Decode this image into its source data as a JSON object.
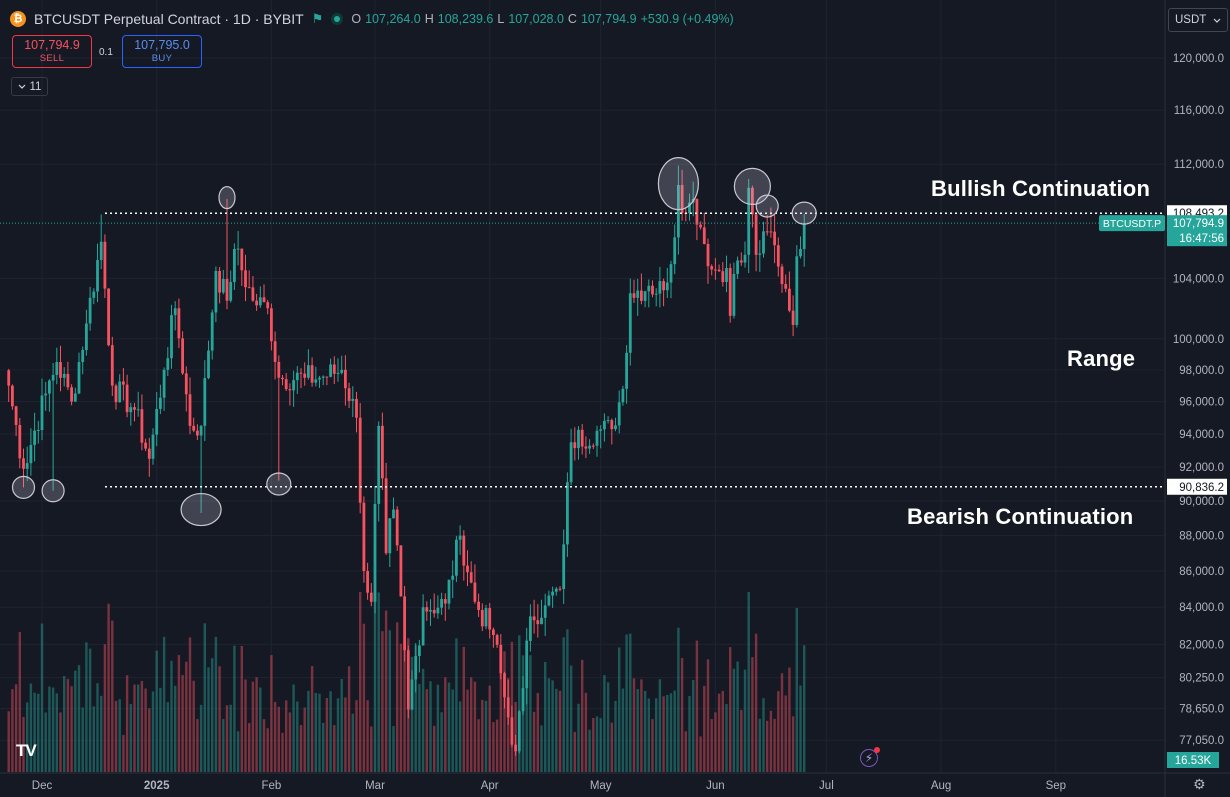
{
  "header": {
    "symbol_icon": "bitcoin-icon",
    "title": "BTCUSDT Perpetual Contract · 1D · BYBIT",
    "flag_icon": "flag-icon",
    "o_label": "O",
    "o_value": "107,264.0",
    "h_label": "H",
    "h_value": "108,239.6",
    "l_label": "L",
    "l_value": "107,028.0",
    "c_label": "C",
    "c_value": "107,794.9",
    "change": "+530.9 (+0.49%)"
  },
  "trade": {
    "sell_price": "107,794.9",
    "sell_label": "SELL",
    "spread": "0.1",
    "buy_price": "107,795.0",
    "buy_label": "BUY"
  },
  "indicators_toggle": {
    "icon": "chevron-down-icon",
    "count": "11"
  },
  "currency": {
    "label": "USDT",
    "icon": "chevron-down-icon"
  },
  "annotations": {
    "bullish": "Bullish Continuation",
    "range": "Range",
    "bearish": "Bearish Continuation"
  },
  "footer": {
    "logo": "TV",
    "bolt_icon": "lightning-icon",
    "settings_icon": "gear-icon"
  },
  "colors": {
    "up": "#26a69a",
    "down": "#f7525f",
    "background": "#151924",
    "grid": "#1f2330"
  },
  "chart_data": {
    "type": "candlestick",
    "symbol": "BTCUSDT.P",
    "scale": "log",
    "ylim": [
      75500,
      123000
    ],
    "y_ticks": [
      "120,000.0",
      "116,000.0",
      "112,000.0",
      "104,000.0",
      "100,000.0",
      "98,000.0",
      "96,000.0",
      "94,000.0",
      "92,000.0",
      "90,000.0",
      "88,000.0",
      "86,000.0",
      "84,000.0",
      "82,000.0",
      "80,250.0",
      "78,650.0",
      "77,050.0"
    ],
    "x_ticks": [
      {
        "label": "Dec",
        "date": "2024-12-01",
        "bold": false
      },
      {
        "label": "2025",
        "date": "2025-01-01",
        "bold": true
      },
      {
        "label": "Feb",
        "date": "2025-02-01",
        "bold": false
      },
      {
        "label": "Mar",
        "date": "2025-03-01",
        "bold": false
      },
      {
        "label": "Apr",
        "date": "2025-04-01",
        "bold": false
      },
      {
        "label": "May",
        "date": "2025-05-01",
        "bold": false
      },
      {
        "label": "Jun",
        "date": "2025-06-01",
        "bold": false
      },
      {
        "label": "Jul",
        "date": "2025-07-01",
        "bold": false
      },
      {
        "label": "Aug",
        "date": "2025-08-01",
        "bold": false
      },
      {
        "label": "Sep",
        "date": "2025-09-01",
        "bold": false
      }
    ],
    "last_date": "2025-06-25",
    "last_price": {
      "value": 107794.9,
      "label": "107,794.9",
      "symbol_label": "BTCUSDT.P",
      "countdown": "16:47:56"
    },
    "levels": [
      {
        "value": 108493.2,
        "label": "108,493.2"
      },
      {
        "value": 90836.2,
        "label": "90,836.2"
      }
    ],
    "volume_label": "16.53K",
    "close_anchors": [
      [
        "2024-11-22",
        97000
      ],
      [
        "2024-11-26",
        91900
      ],
      [
        "2024-12-02",
        96500
      ],
      [
        "2024-12-05",
        98500
      ],
      [
        "2024-12-09",
        96000
      ],
      [
        "2024-12-13",
        101000
      ],
      [
        "2024-12-17",
        106500
      ],
      [
        "2024-12-20",
        97000
      ],
      [
        "2024-12-26",
        95500
      ],
      [
        "2024-12-30",
        92500
      ],
      [
        "2025-01-03",
        98000
      ],
      [
        "2025-01-06",
        102000
      ],
      [
        "2025-01-10",
        94500
      ],
      [
        "2025-01-13",
        94500
      ],
      [
        "2025-01-17",
        104500
      ],
      [
        "2025-01-20",
        102500
      ],
      [
        "2025-01-22",
        106000
      ],
      [
        "2025-01-27",
        102500
      ],
      [
        "2025-01-31",
        102000
      ],
      [
        "2025-02-03",
        97500
      ],
      [
        "2025-02-10",
        97500
      ],
      [
        "2025-02-14",
        97500
      ],
      [
        "2025-02-20",
        98000
      ],
      [
        "2025-02-24",
        95000
      ],
      [
        "2025-02-26",
        86000
      ],
      [
        "2025-02-28",
        84300
      ],
      [
        "2025-03-02",
        94500
      ],
      [
        "2025-03-04",
        87000
      ],
      [
        "2025-03-06",
        89500
      ],
      [
        "2025-03-10",
        78600
      ],
      [
        "2025-03-14",
        84000
      ],
      [
        "2025-03-20",
        84200
      ],
      [
        "2025-03-24",
        88000
      ],
      [
        "2025-03-28",
        84300
      ],
      [
        "2025-04-02",
        82500
      ],
      [
        "2025-04-06",
        78200
      ],
      [
        "2025-04-08",
        76500
      ],
      [
        "2025-04-10",
        79700
      ],
      [
        "2025-04-12",
        83500
      ],
      [
        "2025-04-16",
        84100
      ],
      [
        "2025-04-20",
        85000
      ],
      [
        "2025-04-21",
        87500
      ],
      [
        "2025-04-23",
        93500
      ],
      [
        "2025-04-30",
        94200
      ],
      [
        "2025-05-04",
        94300
      ],
      [
        "2025-05-07",
        96800
      ],
      [
        "2025-05-09",
        103000
      ],
      [
        "2025-05-14",
        103500
      ],
      [
        "2025-05-18",
        103200
      ],
      [
        "2025-05-21",
        106800
      ],
      [
        "2025-05-22",
        110500
      ],
      [
        "2025-05-24",
        108500
      ],
      [
        "2025-05-26",
        109500
      ],
      [
        "2025-05-28",
        107500
      ],
      [
        "2025-05-31",
        104600
      ],
      [
        "2025-06-04",
        104700
      ],
      [
        "2025-06-05",
        101500
      ],
      [
        "2025-06-06",
        104300
      ],
      [
        "2025-06-09",
        105600
      ],
      [
        "2025-06-10",
        110300
      ],
      [
        "2025-06-12",
        105600
      ],
      [
        "2025-06-16",
        107200
      ],
      [
        "2025-06-18",
        104800
      ],
      [
        "2025-06-20",
        103300
      ],
      [
        "2025-06-22",
        100900
      ],
      [
        "2025-06-23",
        105500
      ],
      [
        "2025-06-24",
        106000
      ],
      [
        "2025-06-25",
        107794.9
      ]
    ],
    "marked_highs": [
      [
        "2024-12-17",
        108400
      ],
      [
        "2025-01-20",
        109500
      ],
      [
        "2025-05-22",
        111900
      ],
      [
        "2025-06-10",
        110300
      ],
      [
        "2025-06-16",
        108900
      ],
      [
        "2025-06-25",
        108239.6
      ]
    ],
    "marked_lows": [
      [
        "2024-11-26",
        90800
      ],
      [
        "2024-12-04",
        90600
      ],
      [
        "2025-01-13",
        89300
      ],
      [
        "2025-02-03",
        91200
      ]
    ],
    "circles": [
      {
        "date": "2024-11-26",
        "price": 90800
      },
      {
        "date": "2024-12-04",
        "price": 90600
      },
      {
        "date": "2025-01-13",
        "price": 89500
      },
      {
        "date": "2025-01-20",
        "price": 109600
      },
      {
        "date": "2025-02-03",
        "price": 91000
      },
      {
        "date": "2025-05-22",
        "price": 110600
      },
      {
        "date": "2025-06-11",
        "price": 110400
      },
      {
        "date": "2025-06-15",
        "price": 109000
      },
      {
        "date": "2025-06-25",
        "price": 108500
      }
    ]
  }
}
